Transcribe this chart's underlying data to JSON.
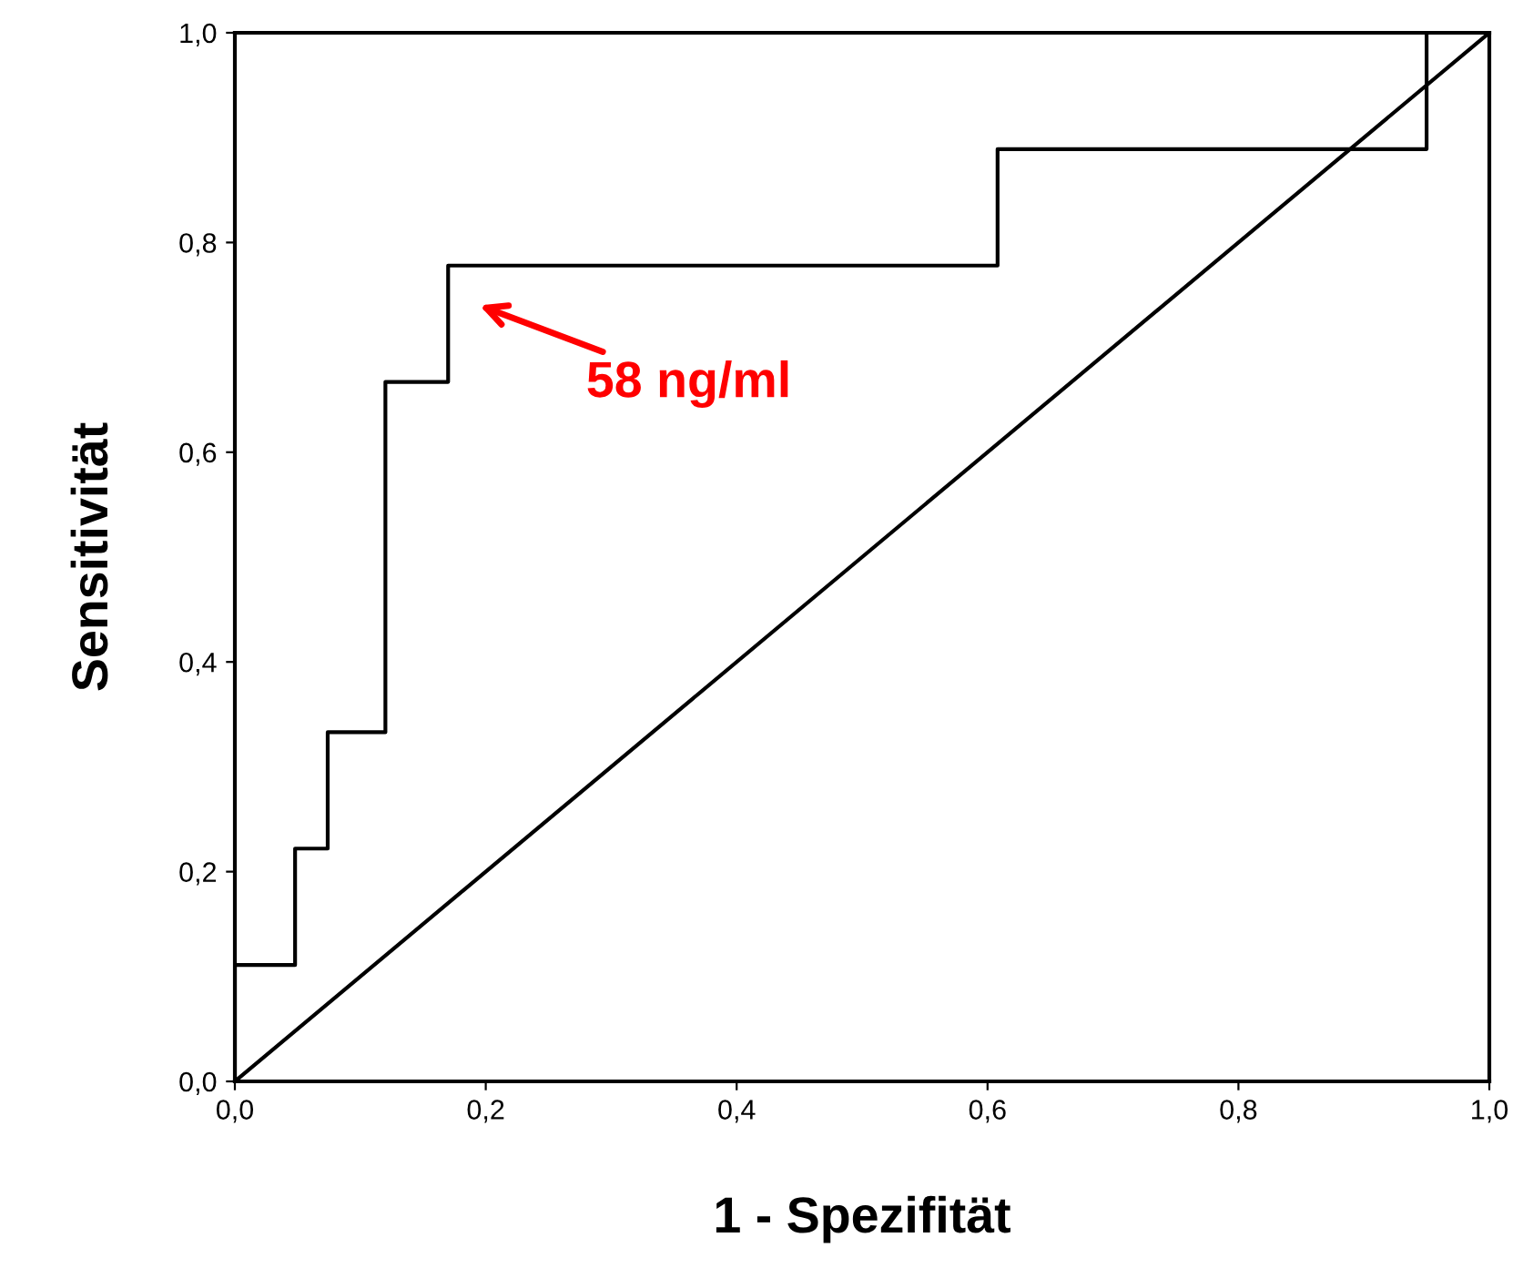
{
  "chart_data": {
    "type": "line",
    "xlabel": "1 - Spezifität",
    "ylabel": "Sensitivität",
    "series": [
      {
        "color": "#000000",
        "x": [
          0,
          0,
          0.048,
          0.048,
          0.074,
          0.074,
          0.12,
          0.12,
          0.17,
          0.17,
          0.608,
          0.608,
          0.95,
          0.95,
          1.0
        ],
        "values": [
          0,
          0.111,
          0.111,
          0.222,
          0.222,
          0.333,
          0.333,
          0.667,
          0.667,
          0.778,
          0.778,
          0.889,
          0.889,
          1.0,
          1.0
        ]
      },
      {
        "color": "#000000",
        "x": [
          0,
          1
        ],
        "values": [
          0,
          1
        ]
      }
    ],
    "annotations": [
      "58 ng/ml"
    ],
    "xlim": [
      0,
      1
    ],
    "ylim": [
      0,
      1
    ],
    "xticks": [
      {
        "value": 0,
        "label": "0,0"
      },
      {
        "value": 0.2,
        "label": "0,2"
      },
      {
        "value": 0.4,
        "label": "0,4"
      },
      {
        "value": 0.6,
        "label": "0,6"
      },
      {
        "value": 0.8,
        "label": "0,8"
      },
      {
        "value": 1,
        "label": "1,0"
      }
    ],
    "yticks": [
      {
        "value": 0,
        "label": "0,0"
      },
      {
        "value": 0.2,
        "label": "0,2"
      },
      {
        "value": 0.4,
        "label": "0,4"
      },
      {
        "value": 0.6,
        "label": "0,6"
      },
      {
        "value": 0.8,
        "label": "0,8"
      },
      {
        "value": 1,
        "label": "1,0"
      }
    ],
    "grid": false,
    "legend": false,
    "marker": "none",
    "line_style": "solid"
  }
}
